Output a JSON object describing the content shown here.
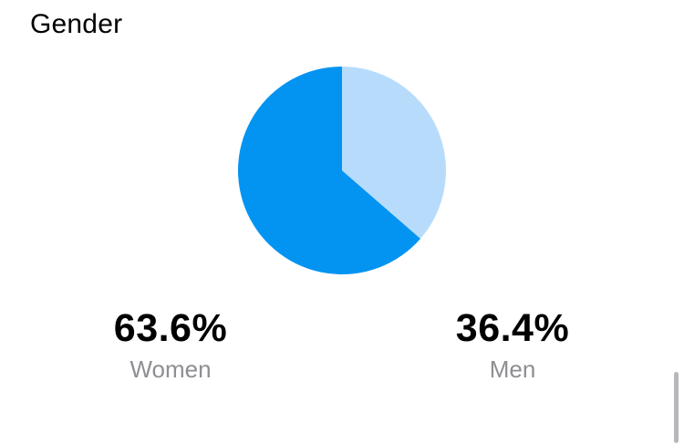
{
  "section": {
    "title": "Gender"
  },
  "chart_data": {
    "type": "pie",
    "categories": [
      "Women",
      "Men"
    ],
    "values": [
      63.6,
      36.4
    ],
    "colors": [
      "#0394f2",
      "#b7dcfb"
    ],
    "start": "12 o'clock",
    "direction": "men slice clockwise from top, women slice counter-clockwise from top"
  },
  "stats": [
    {
      "value": "63.6%",
      "label": "Women"
    },
    {
      "value": "36.4%",
      "label": "Men"
    }
  ],
  "colors": {
    "women": "#0394f2",
    "men": "#b7dcfb",
    "label_gray": "#8e8e93"
  }
}
